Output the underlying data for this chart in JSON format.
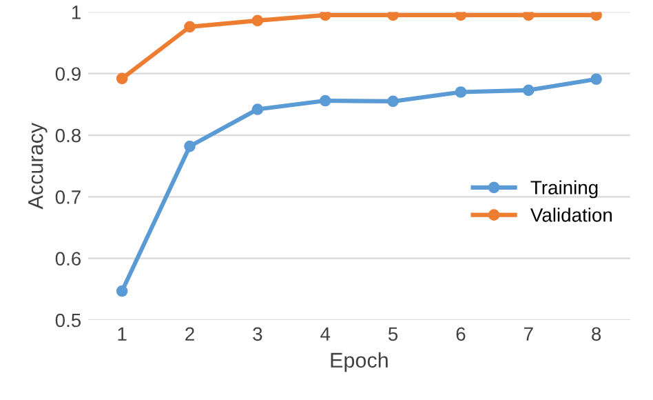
{
  "chart_data": {
    "type": "line",
    "xlabel": "Epoch",
    "ylabel": "Accuracy",
    "categories": [
      "1",
      "2",
      "3",
      "4",
      "5",
      "6",
      "7",
      "8"
    ],
    "series": [
      {
        "name": "Training",
        "color": "#5b9bd5",
        "values": [
          0.547,
          0.782,
          0.842,
          0.856,
          0.855,
          0.87,
          0.873,
          0.891
        ]
      },
      {
        "name": "Validation",
        "color": "#ed7d31",
        "values": [
          0.892,
          0.976,
          0.986,
          0.995,
          0.995,
          0.995,
          0.995,
          0.995
        ]
      }
    ],
    "ylim": [
      0.5,
      1
    ],
    "yticks": [
      0.5,
      0.6,
      0.7,
      0.8,
      0.9,
      1
    ],
    "grid": "y",
    "legend": "right",
    "marker": "circle",
    "line_style": "solid"
  }
}
